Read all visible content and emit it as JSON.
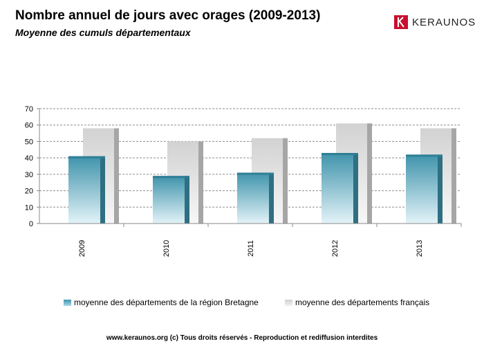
{
  "header": {
    "title": "Nombre annuel de jours avec orages (2009-2013)",
    "subtitle": "Moyenne des cumuls départementaux"
  },
  "logo": {
    "text": "KERAUNOS",
    "color": "#c8102e"
  },
  "chart_data": {
    "type": "bar",
    "categories": [
      "2009",
      "2010",
      "2011",
      "2012",
      "2013"
    ],
    "series": [
      {
        "name": "moyenne des départements de la région Bretagne",
        "values": [
          41,
          29,
          31,
          43,
          42
        ],
        "color": "#5aaabf"
      },
      {
        "name": "moyenne des départements français",
        "values": [
          58,
          50,
          52,
          61,
          58
        ],
        "color": "#d9d9d9"
      }
    ],
    "ylim": [
      0,
      70
    ],
    "yticks": [
      0,
      10,
      20,
      30,
      40,
      50,
      60,
      70
    ],
    "grid": true,
    "legend_position": "bottom"
  },
  "footer": {
    "text": "www.keraunos.org (c) Tous droits réservés - Reproduction et rediffusion interdites"
  }
}
